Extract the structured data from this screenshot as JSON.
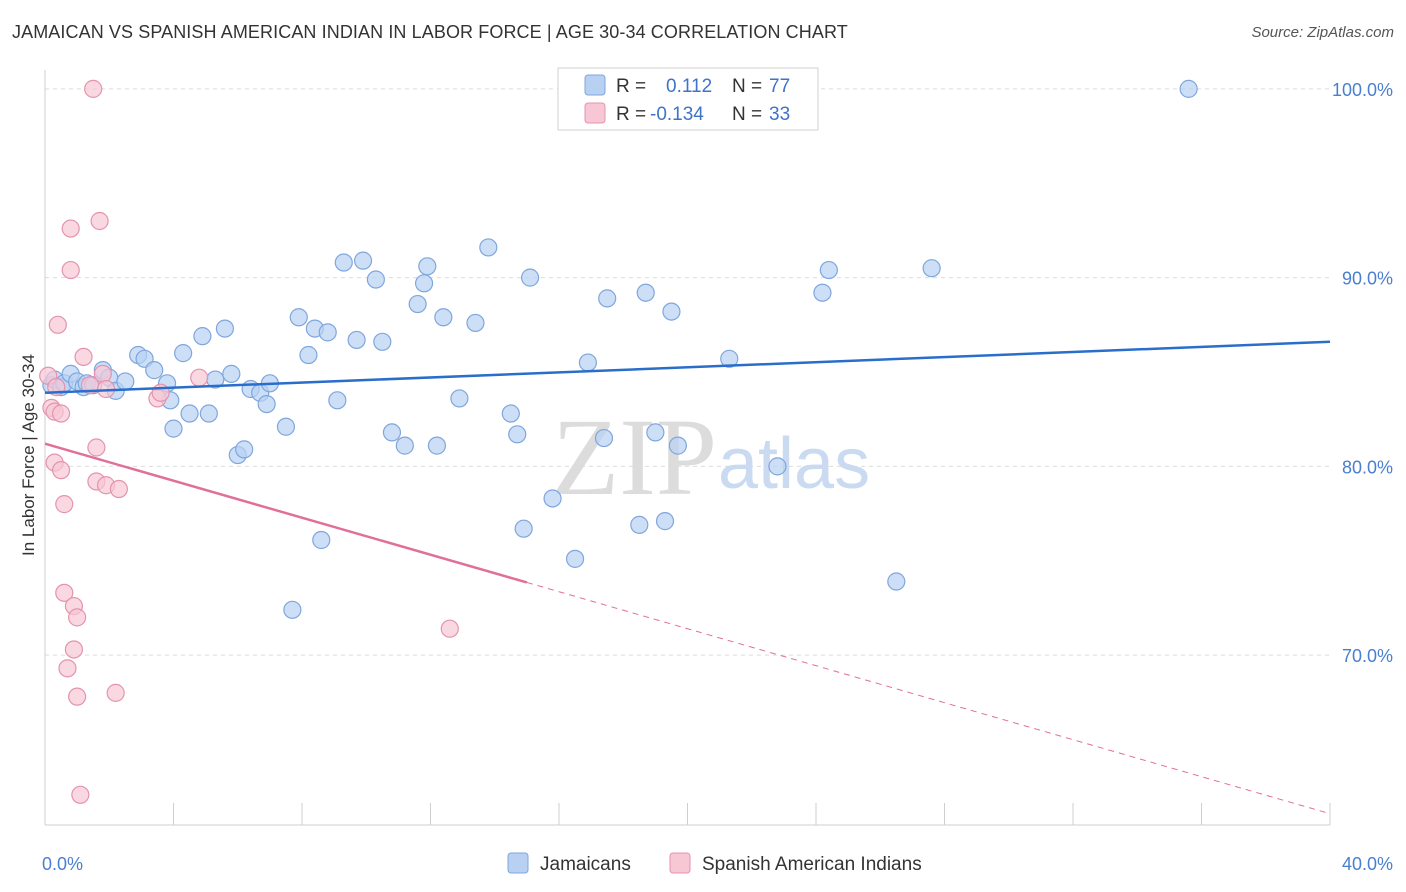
{
  "title": "JAMAICAN VS SPANISH AMERICAN INDIAN IN LABOR FORCE | AGE 30-34 CORRELATION CHART",
  "source": "Source: ZipAtlas.com",
  "watermark": {
    "zip": "ZIP",
    "atlas": "atlas"
  },
  "colors": {
    "blue_fill": "#b8d1f3",
    "blue_stroke": "#7fa6dd",
    "blue_line": "#2a6ecb",
    "pink_fill": "#f7c7d6",
    "pink_stroke": "#e593ae",
    "pink_line": "#e0709a",
    "grid": "#dcdcdc",
    "axis_label": "#4a7fcf"
  },
  "legend": {
    "rows": [
      {
        "r_label": "R =",
        "r_value": "0.112",
        "n_label": "N =",
        "n_value": "77",
        "series": "blue"
      },
      {
        "r_label": "R =",
        "r_value": "-0.134",
        "n_label": "N =",
        "n_value": "33",
        "series": "pink"
      }
    ]
  },
  "chart_data": {
    "type": "scatter",
    "title": "JAMAICAN VS SPANISH AMERICAN INDIAN IN LABOR FORCE | AGE 30-34 CORRELATION CHART",
    "xlabel": "",
    "ylabel": "In Labor Force | Age 30-34",
    "xlim": [
      0,
      40
    ],
    "ylim": [
      61,
      101
    ],
    "x_ticks": [
      {
        "value": 0,
        "label": "0.0%"
      },
      {
        "value": 40,
        "label": "40.0%"
      }
    ],
    "y_ticks": [
      {
        "value": 70,
        "label": "70.0%"
      },
      {
        "value": 80,
        "label": "80.0%"
      },
      {
        "value": 90,
        "label": "90.0%"
      },
      {
        "value": 100,
        "label": "100.0%"
      }
    ],
    "series": [
      {
        "name": "Jamaicans",
        "color": "blue",
        "trend": {
          "x": [
            0,
            40
          ],
          "y": [
            83.9,
            86.6
          ],
          "dashed_from": null
        },
        "points": [
          [
            0.2,
            84.3
          ],
          [
            0.3,
            84.6
          ],
          [
            0.5,
            84.2
          ],
          [
            0.6,
            84.4
          ],
          [
            0.8,
            84.9
          ],
          [
            1.0,
            84.5
          ],
          [
            1.2,
            84.2
          ],
          [
            1.3,
            84.4
          ],
          [
            1.5,
            84.3
          ],
          [
            1.8,
            85.1
          ],
          [
            2.0,
            84.7
          ],
          [
            2.2,
            84.0
          ],
          [
            2.5,
            84.5
          ],
          [
            2.9,
            85.9
          ],
          [
            3.1,
            85.7
          ],
          [
            3.4,
            85.1
          ],
          [
            3.8,
            84.4
          ],
          [
            3.9,
            83.5
          ],
          [
            4.0,
            82.0
          ],
          [
            4.3,
            86.0
          ],
          [
            4.5,
            82.8
          ],
          [
            4.9,
            86.9
          ],
          [
            5.1,
            82.8
          ],
          [
            5.3,
            84.6
          ],
          [
            5.6,
            87.3
          ],
          [
            5.8,
            84.9
          ],
          [
            6.0,
            80.6
          ],
          [
            6.2,
            80.9
          ],
          [
            6.4,
            84.1
          ],
          [
            6.7,
            83.9
          ],
          [
            6.9,
            83.3
          ],
          [
            7.0,
            84.4
          ],
          [
            7.5,
            82.1
          ],
          [
            7.7,
            72.4
          ],
          [
            7.9,
            87.9
          ],
          [
            8.2,
            85.9
          ],
          [
            8.4,
            87.3
          ],
          [
            8.6,
            76.1
          ],
          [
            8.8,
            87.1
          ],
          [
            9.1,
            83.5
          ],
          [
            9.3,
            90.8
          ],
          [
            9.7,
            86.7
          ],
          [
            9.9,
            90.9
          ],
          [
            10.3,
            89.9
          ],
          [
            10.5,
            86.6
          ],
          [
            10.8,
            81.8
          ],
          [
            11.2,
            81.1
          ],
          [
            11.6,
            88.6
          ],
          [
            11.8,
            89.7
          ],
          [
            11.9,
            90.6
          ],
          [
            12.2,
            81.1
          ],
          [
            12.4,
            87.9
          ],
          [
            12.9,
            83.6
          ],
          [
            13.4,
            87.6
          ],
          [
            13.8,
            91.6
          ],
          [
            14.5,
            82.8
          ],
          [
            14.7,
            81.7
          ],
          [
            14.9,
            76.7
          ],
          [
            15.1,
            90.0
          ],
          [
            15.8,
            78.3
          ],
          [
            16.5,
            75.1
          ],
          [
            16.9,
            85.5
          ],
          [
            17.4,
            81.5
          ],
          [
            17.5,
            88.9
          ],
          [
            18.5,
            76.9
          ],
          [
            18.7,
            89.2
          ],
          [
            19.0,
            81.8
          ],
          [
            19.3,
            77.1
          ],
          [
            19.5,
            88.2
          ],
          [
            19.7,
            81.1
          ],
          [
            21.3,
            85.7
          ],
          [
            22.8,
            80.0
          ],
          [
            24.2,
            89.2
          ],
          [
            24.4,
            90.4
          ],
          [
            26.5,
            73.9
          ],
          [
            27.6,
            90.5
          ],
          [
            35.6,
            100.0
          ]
        ]
      },
      {
        "name": "Spanish American Indians",
        "color": "pink",
        "trend": {
          "x": [
            0,
            40
          ],
          "y": [
            81.2,
            61.6
          ],
          "dashed_from": 15
        },
        "points": [
          [
            0.1,
            84.8
          ],
          [
            0.2,
            83.1
          ],
          [
            0.3,
            82.9
          ],
          [
            0.35,
            84.2
          ],
          [
            0.3,
            80.2
          ],
          [
            0.4,
            87.5
          ],
          [
            0.5,
            82.8
          ],
          [
            0.5,
            79.8
          ],
          [
            0.6,
            78.0
          ],
          [
            0.6,
            73.3
          ],
          [
            0.7,
            69.3
          ],
          [
            0.8,
            92.6
          ],
          [
            0.8,
            90.4
          ],
          [
            0.9,
            72.6
          ],
          [
            0.9,
            70.3
          ],
          [
            1.0,
            72.0
          ],
          [
            1.0,
            67.8
          ],
          [
            1.1,
            62.6
          ],
          [
            1.2,
            85.8
          ],
          [
            1.4,
            84.3
          ],
          [
            1.5,
            100.0
          ],
          [
            1.6,
            79.2
          ],
          [
            1.6,
            81.0
          ],
          [
            1.7,
            93.0
          ],
          [
            1.8,
            84.9
          ],
          [
            1.9,
            84.1
          ],
          [
            1.9,
            79.0
          ],
          [
            2.2,
            68.0
          ],
          [
            2.3,
            78.8
          ],
          [
            3.5,
            83.6
          ],
          [
            3.6,
            83.9
          ],
          [
            4.8,
            84.7
          ],
          [
            12.6,
            71.4
          ]
        ]
      }
    ],
    "legend_entries": [
      "Jamaicans",
      "Spanish American Indians"
    ]
  }
}
